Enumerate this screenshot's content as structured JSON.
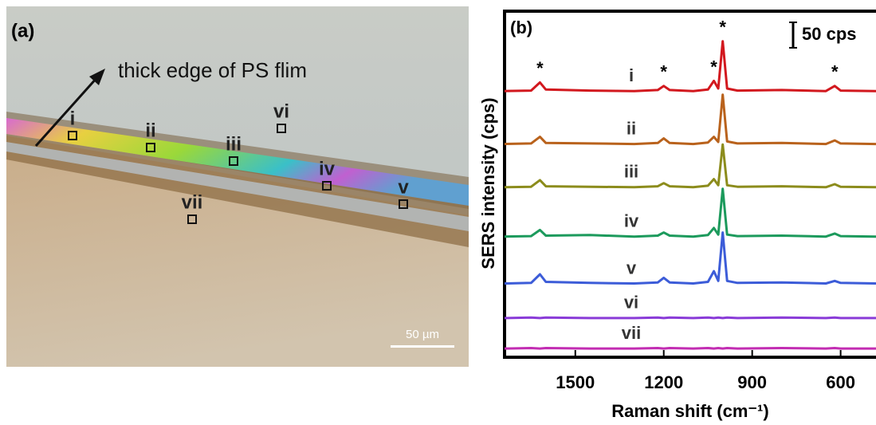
{
  "panel_a": {
    "label": "(a)",
    "annotation": "thick edge of PS flim",
    "regions": [
      "i",
      "ii",
      "iii",
      "iv",
      "v",
      "vi",
      "vii"
    ],
    "scale_bar": "50 µm"
  },
  "chart_data": {
    "type": "line",
    "panel_label": "(b)",
    "scale_bar_label": "50 cps",
    "scale_bar_value": 50,
    "x_label": "Raman shift (cm⁻¹)",
    "y_label": "SERS intensity (cps)",
    "x": [
      1740,
      1650,
      1620,
      1600,
      1450,
      1300,
      1220,
      1200,
      1180,
      1100,
      1050,
      1030,
      1015,
      1000,
      985,
      950,
      800,
      650,
      620,
      600,
      480
    ],
    "xlim": [
      1740,
      480
    ],
    "xticks": [
      1500,
      1200,
      900,
      600
    ],
    "ylim": [
      0,
      680
    ],
    "peak_marker_label": "*",
    "peak_markers": [
      1620,
      1200,
      1030,
      1000,
      620
    ],
    "series": [
      {
        "name": "i",
        "color": "#d2181e",
        "values": [
          523,
          524,
          540,
          526,
          524,
          523,
          525,
          533,
          525,
          523,
          526,
          543,
          528,
          621,
          528,
          524,
          525,
          523,
          533,
          524,
          523
        ]
      },
      {
        "name": "ii",
        "color": "#b9621c",
        "values": [
          419,
          420,
          433,
          421,
          420,
          419,
          421,
          430,
          421,
          419,
          422,
          433,
          423,
          516,
          424,
          420,
          421,
          419,
          426,
          420,
          419
        ]
      },
      {
        "name": "iii",
        "color": "#8c8c1c",
        "values": [
          334,
          335,
          348,
          336,
          335,
          334,
          336,
          342,
          336,
          334,
          337,
          350,
          338,
          418,
          338,
          335,
          336,
          334,
          340,
          335,
          334
        ]
      },
      {
        "name": "iv",
        "color": "#1c9a5c",
        "values": [
          237,
          238,
          250,
          239,
          240,
          237,
          239,
          245,
          239,
          237,
          240,
          254,
          241,
          331,
          241,
          238,
          239,
          237,
          243,
          238,
          237
        ]
      },
      {
        "name": "v",
        "color": "#3c5cd8",
        "values": [
          145,
          146,
          163,
          148,
          146,
          145,
          147,
          156,
          147,
          145,
          148,
          169,
          150,
          245,
          150,
          146,
          147,
          145,
          150,
          146,
          145
        ]
      },
      {
        "name": "vi",
        "color": "#8a3cd8",
        "values": [
          77,
          78,
          77,
          78,
          77,
          77,
          78,
          77,
          78,
          77,
          78,
          77,
          78,
          77,
          78,
          77,
          78,
          77,
          78,
          77,
          77
        ]
      },
      {
        "name": "vii",
        "color": "#c22cb2",
        "values": [
          17,
          18,
          17,
          18,
          17,
          17,
          18,
          17,
          18,
          17,
          18,
          17,
          18,
          17,
          18,
          17,
          18,
          17,
          18,
          17,
          17
        ]
      }
    ]
  }
}
